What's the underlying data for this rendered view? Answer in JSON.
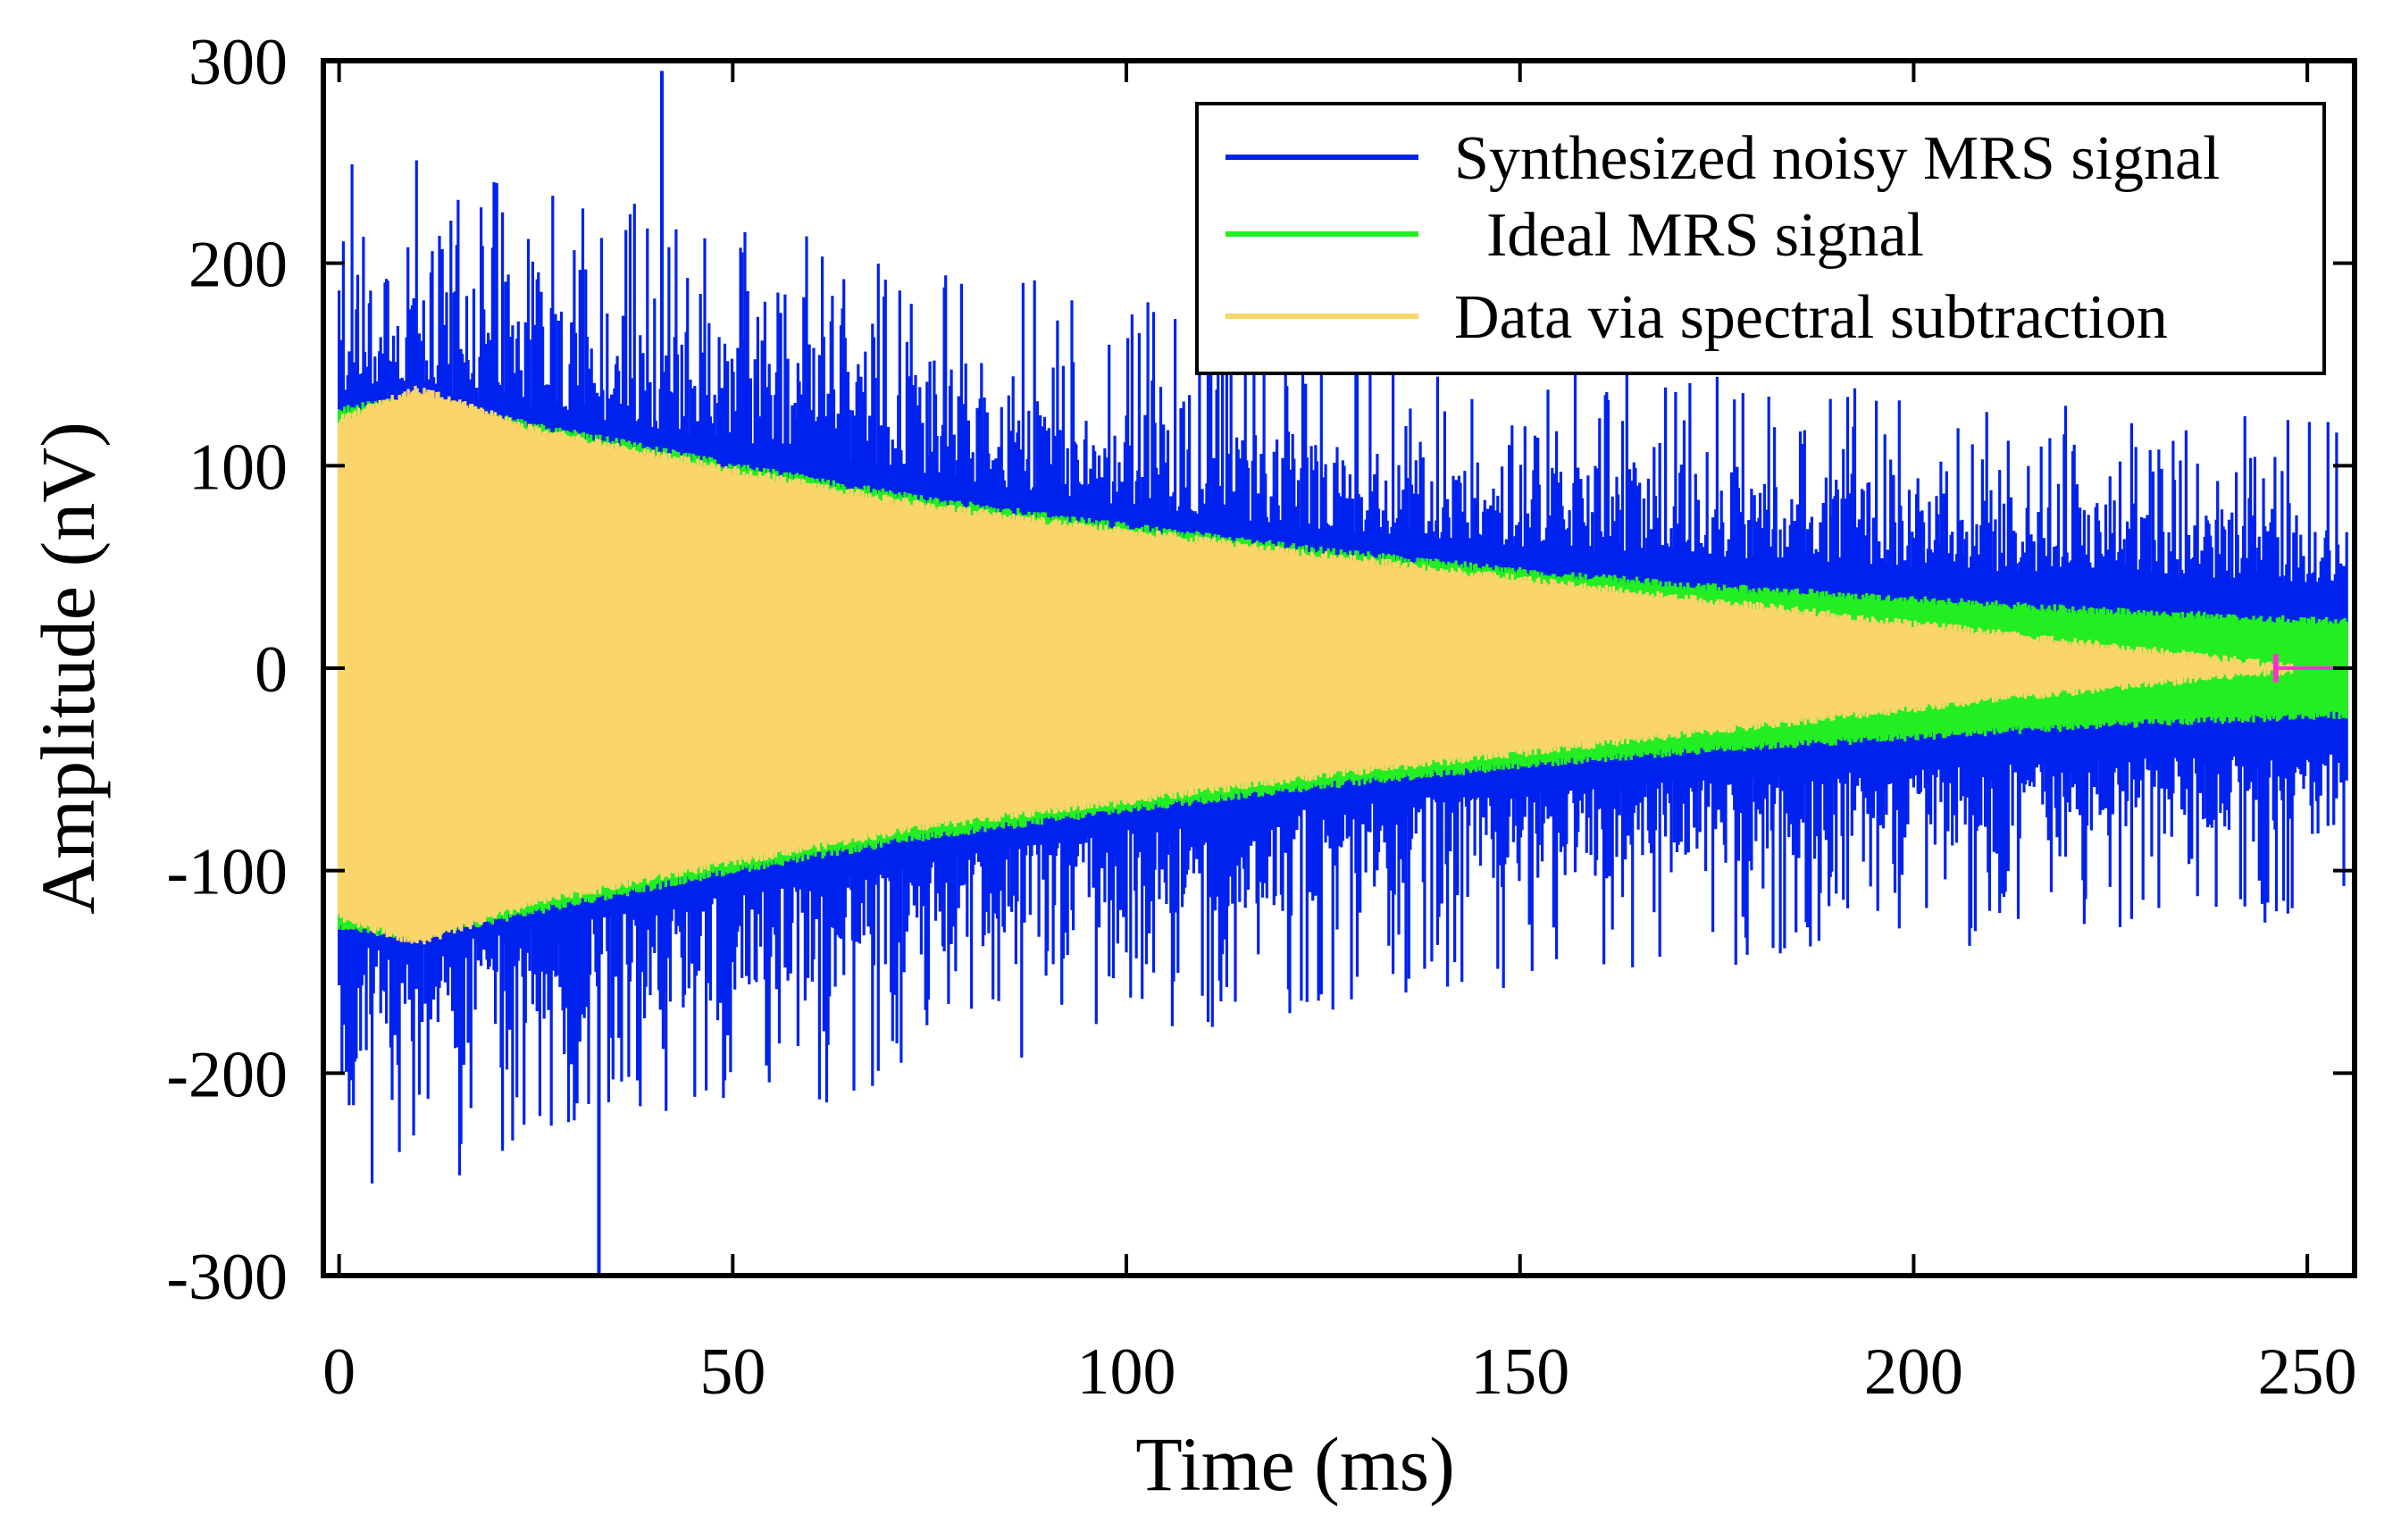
{
  "chart_data": {
    "type": "line",
    "title": "",
    "xlabel": "Time (ms)",
    "ylabel": "Amplitude (nV)",
    "xlim": [
      -2,
      256
    ],
    "ylim": [
      -300,
      300
    ],
    "xticks": [
      0,
      50,
      100,
      150,
      200,
      250
    ],
    "yticks": [
      -300,
      -200,
      -100,
      0,
      100,
      200,
      300
    ],
    "xtick_labels": [
      "0",
      "50",
      "100",
      "150",
      "200",
      "250"
    ],
    "ytick_labels": [
      "-300",
      "-200",
      "-100",
      "0",
      "100",
      "200",
      "300"
    ],
    "grid": false,
    "legend_position": "top-right",
    "series": [
      {
        "name": "Synthesized noisy MRS signal",
        "color": "#0022ee",
        "envelope": {
          "t": [
            0,
            10,
            25,
            50,
            75,
            100,
            125,
            150,
            175,
            200,
            225,
            255
          ],
          "upper": [
            135,
            138,
            128,
            112,
            95,
            80,
            68,
            60,
            55,
            50,
            45,
            42
          ],
          "lower": [
            -135,
            -138,
            -128,
            -112,
            -95,
            -80,
            -68,
            -60,
            -55,
            -50,
            -45,
            -42
          ]
        },
        "noise_peak_range": [
          -300,
          295
        ]
      },
      {
        "name": "Ideal MRS signal",
        "color": "#22ee22",
        "envelope": {
          "t": [
            0,
            10,
            25,
            50,
            75,
            100,
            125,
            150,
            175,
            200,
            225,
            255
          ],
          "upper": [
            130,
            135,
            122,
            102,
            85,
            72,
            60,
            50,
            42,
            36,
            30,
            25
          ],
          "lower": [
            -130,
            -135,
            -122,
            -102,
            -85,
            -72,
            -60,
            -50,
            -42,
            -36,
            -30,
            -25
          ]
        }
      },
      {
        "name": "Data via spectral subtraction",
        "color": "#f9d56a",
        "envelope": {
          "t": [
            0,
            10,
            25,
            50,
            75,
            100,
            125,
            150,
            175,
            200,
            225,
            248
          ],
          "upper": [
            125,
            140,
            120,
            100,
            82,
            70,
            58,
            46,
            35,
            24,
            13,
            3
          ],
          "lower": [
            -125,
            -138,
            -118,
            -98,
            -80,
            -68,
            -55,
            -44,
            -33,
            -22,
            -12,
            -3
          ]
        }
      }
    ],
    "annotations": [
      {
        "type": "marker",
        "color": "#ff33cc",
        "t": 246,
        "span_to": 255,
        "value": 0
      }
    ]
  }
}
